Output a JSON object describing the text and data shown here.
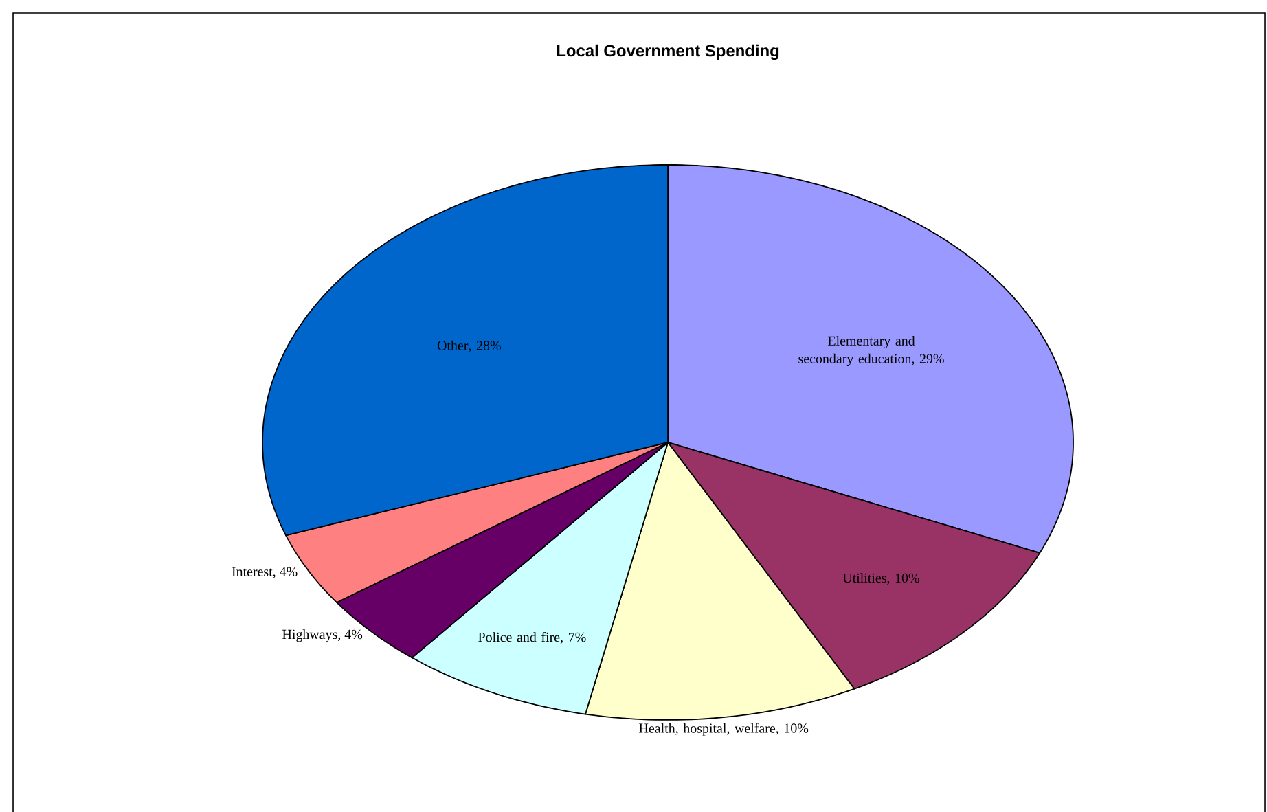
{
  "chart_data": {
    "type": "pie",
    "title": "Local Government Spending",
    "categories": [
      "Elementary and secondary education",
      "Utilities",
      "Health, hospital, welfare",
      "Police and fire",
      "Highways",
      "Interest",
      "Other"
    ],
    "values": [
      29,
      10,
      10,
      7,
      4,
      4,
      28
    ],
    "colors": [
      "#9999ff",
      "#993366",
      "#ffffcc",
      "#ccffff",
      "#660066",
      "#ff8080",
      "#0066cc"
    ],
    "value_labels": [
      ", 29%",
      ", 10%",
      ", 10%",
      ", 7%",
      ", 4%",
      ", 4%",
      ", 28%"
    ]
  }
}
